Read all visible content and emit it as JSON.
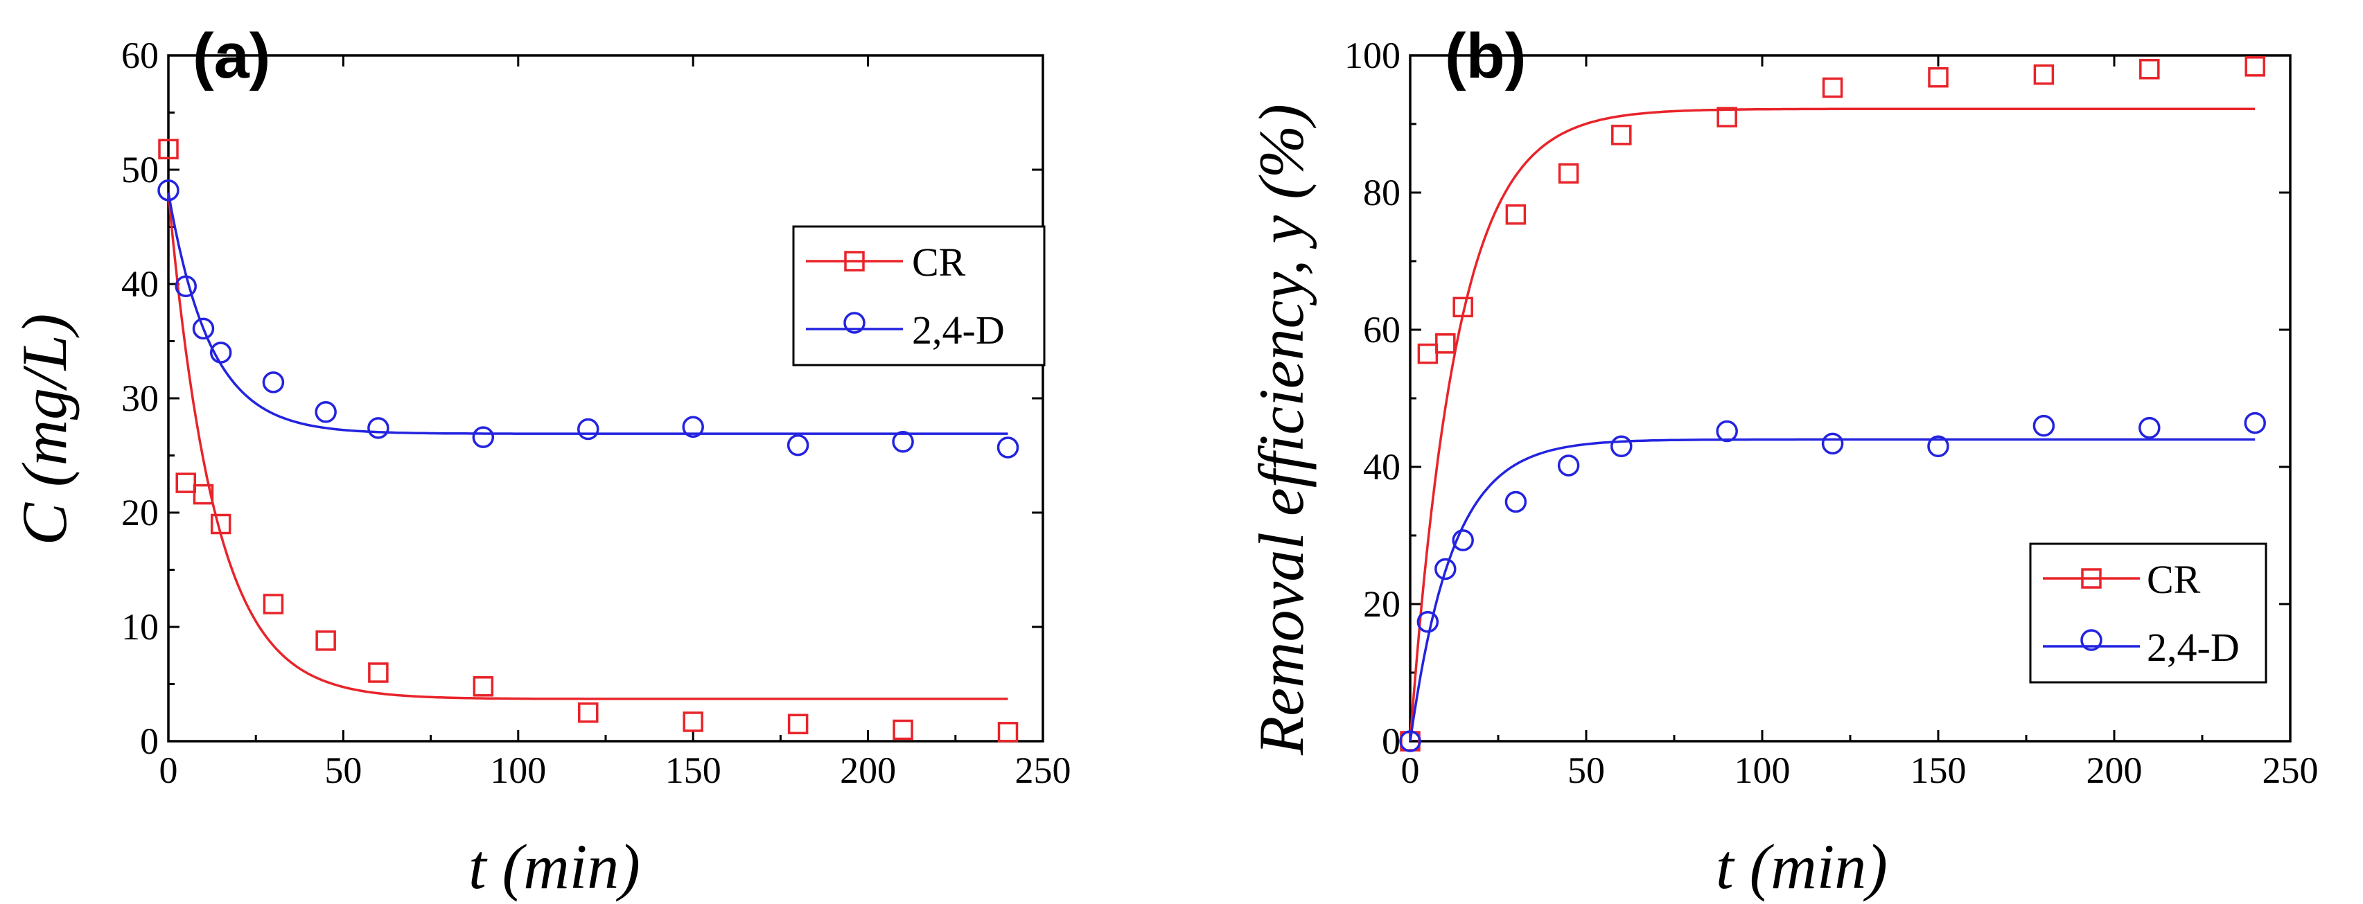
{
  "colors": {
    "cr": "#e8242a",
    "d24": "#2323e0",
    "axis": "#000000"
  },
  "chart_data": [
    {
      "type": "scatter",
      "panel_label": "(a)",
      "xlabel": "t (min)",
      "ylabel": "C (mg/L)",
      "xlim": [
        0,
        250
      ],
      "ylim": [
        0,
        60
      ],
      "xticks": [
        "0",
        "50",
        "100",
        "150",
        "200",
        "250"
      ],
      "yticks": [
        "0",
        "10",
        "20",
        "30",
        "40",
        "50",
        "60"
      ],
      "legend_position": "upper-right",
      "series": [
        {
          "name": "CR",
          "key": "cr",
          "marker": "square",
          "x": [
            0,
            5,
            10,
            15,
            30,
            45,
            60,
            90,
            120,
            150,
            180,
            210,
            240
          ],
          "y": [
            51.8,
            22.6,
            21.6,
            19.0,
            12.0,
            8.8,
            6.0,
            4.8,
            2.5,
            1.7,
            1.5,
            1.0,
            0.8
          ],
          "fit": {
            "model": "exponential",
            "y0": 48,
            "yinf": 3.7,
            "k": 0.075
          }
        },
        {
          "name": "2,4-D",
          "key": "d24",
          "marker": "circle",
          "x": [
            0,
            5,
            10,
            15,
            30,
            45,
            60,
            90,
            120,
            150,
            180,
            210,
            240
          ],
          "y": [
            48.2,
            39.8,
            36.1,
            34.0,
            31.4,
            28.8,
            27.4,
            26.6,
            27.3,
            27.5,
            25.9,
            26.2,
            25.7
          ],
          "fit": {
            "model": "exponential",
            "y0": 48,
            "yinf": 26.9,
            "k": 0.083
          }
        }
      ]
    },
    {
      "type": "scatter",
      "panel_label": "(b)",
      "xlabel": "t (min)",
      "ylabel": "Removal efficiency, y (%)",
      "xlim": [
        0,
        250
      ],
      "ylim": [
        0,
        100
      ],
      "xticks": [
        "0",
        "50",
        "100",
        "150",
        "200",
        "250"
      ],
      "yticks": [
        "0",
        "20",
        "40",
        "60",
        "80",
        "100"
      ],
      "legend_position": "lower-right",
      "series": [
        {
          "name": "CR",
          "key": "cr",
          "marker": "square",
          "x": [
            0,
            5,
            10,
            15,
            30,
            45,
            60,
            90,
            120,
            150,
            180,
            210,
            240
          ],
          "y": [
            0,
            56.5,
            58.0,
            63.3,
            76.8,
            82.8,
            88.4,
            91.0,
            95.3,
            96.8,
            97.2,
            98.0,
            98.4
          ],
          "fit": {
            "model": "exponential",
            "y0": 0,
            "yinf": 92.2,
            "k": 0.075
          }
        },
        {
          "name": "2,4-D",
          "key": "d24",
          "marker": "circle",
          "x": [
            0,
            5,
            10,
            15,
            30,
            45,
            60,
            90,
            120,
            150,
            180,
            210,
            240
          ],
          "y": [
            0,
            17.4,
            25.1,
            29.3,
            34.9,
            40.2,
            43.0,
            45.2,
            43.4,
            43.0,
            46.0,
            45.7,
            46.4
          ],
          "fit": {
            "model": "exponential",
            "y0": 0,
            "yinf": 44.0,
            "k": 0.083
          }
        }
      ]
    }
  ]
}
